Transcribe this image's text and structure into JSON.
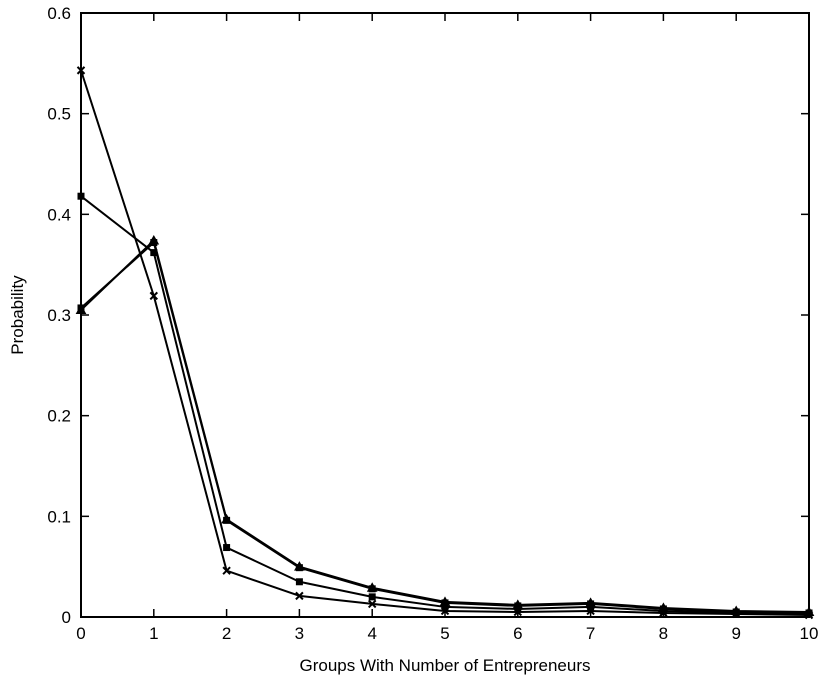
{
  "chart_data": {
    "type": "line",
    "title": "",
    "xlabel": "Groups With Number of Entrepreneurs",
    "ylabel": "Probability",
    "xlim": [
      0,
      10
    ],
    "ylim": [
      0,
      0.6
    ],
    "x_ticks": [
      0,
      1,
      2,
      3,
      4,
      5,
      6,
      7,
      8,
      9,
      10
    ],
    "y_ticks": [
      0,
      0.1,
      0.2,
      0.3,
      0.4,
      0.5,
      0.6
    ],
    "x_tick_labels": [
      "0",
      "1",
      "2",
      "3",
      "4",
      "5",
      "6",
      "7",
      "8",
      "9",
      "10"
    ],
    "y_tick_labels": [
      "0",
      "0.1",
      "0.2",
      "0.3",
      "0.4",
      "0.5",
      "0.6"
    ],
    "grid": false,
    "legend": "none",
    "line_color": "#000000",
    "x": [
      0,
      1,
      2,
      3,
      4,
      5,
      6,
      7,
      8,
      9,
      10
    ],
    "series": [
      {
        "marker": "triangle",
        "values": [
          0.305,
          0.374,
          0.097,
          0.05,
          0.029,
          0.015,
          0.012,
          0.014,
          0.009,
          0.006,
          0.005
        ]
      },
      {
        "marker": "square",
        "values": [
          0.307,
          0.372,
          0.096,
          0.049,
          0.028,
          0.014,
          0.011,
          0.013,
          0.008,
          0.005,
          0.004
        ]
      },
      {
        "marker": "square",
        "values": [
          0.418,
          0.362,
          0.069,
          0.035,
          0.02,
          0.01,
          0.008,
          0.01,
          0.006,
          0.004,
          0.003
        ]
      },
      {
        "marker": "x",
        "values": [
          0.543,
          0.319,
          0.046,
          0.021,
          0.013,
          0.006,
          0.005,
          0.006,
          0.004,
          0.003,
          0.002
        ]
      }
    ]
  }
}
